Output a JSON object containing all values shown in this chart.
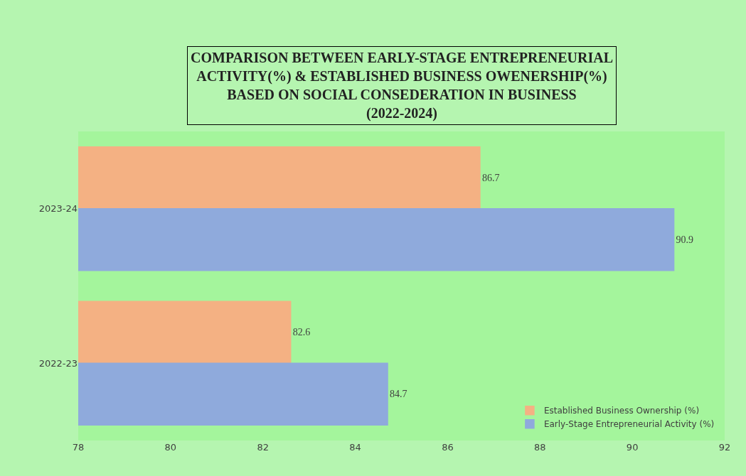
{
  "chart_data": {
    "type": "bar",
    "orientation": "horizontal",
    "title": "COMPARISON BETWEEN EARLY-STAGE ENTREPRENEURIAL ACTIVITY(%) & ESTABLISHED BUSINESS OWENERSHIP(%) BASED ON SOCIAL CONSEDERATION IN BUSINESS (2022-2024)",
    "categories": [
      "2023-24",
      "2022-23"
    ],
    "series": [
      {
        "name": "Established Business Ownership (%)",
        "color": "#f4b183",
        "values": [
          86.7,
          82.6
        ]
      },
      {
        "name": "Early-Stage Entrepreneurial Activity (%)",
        "color": "#8faadc",
        "values": [
          90.9,
          84.7
        ]
      }
    ],
    "xlim": [
      78,
      92
    ],
    "xticks": [
      78,
      80,
      82,
      84,
      86,
      88,
      90,
      92
    ],
    "data_labels": true,
    "grid": false,
    "legend": "bottom right"
  }
}
